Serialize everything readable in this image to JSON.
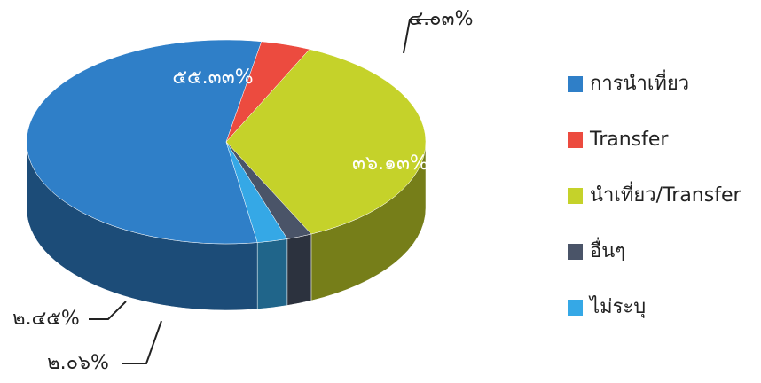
{
  "chart_data": {
    "type": "pie3d",
    "categories": [
      "การนำเที่ยว",
      "Transfer",
      "นำเที่ยว/Transfer",
      "อื่นๆ",
      "ไม่ระบุ"
    ],
    "values": [
      55.33,
      4.03,
      36.13,
      2.06,
      2.45
    ],
    "value_labels": [
      "๕๕.๓๓%",
      "๔.๐๓%",
      "๓๖.๑๓%",
      "๒.๐๖%",
      "๒.๔๕%"
    ],
    "colors": [
      "#2f7fc8",
      "#ec4b3f",
      "#c5d22a",
      "#4a5468",
      "#35a8e6"
    ],
    "legend": "right"
  }
}
